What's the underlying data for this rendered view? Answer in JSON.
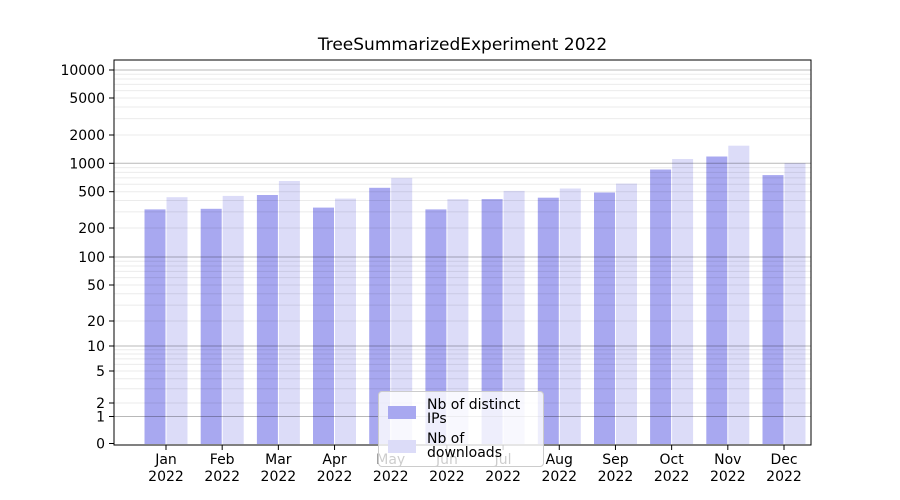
{
  "chart_data": {
    "type": "bar",
    "title": "TreeSummarizedExperiment 2022",
    "categories": [
      "Jan",
      "Feb",
      "Mar",
      "Apr",
      "May",
      "Jun",
      "Jul",
      "Aug",
      "Sep",
      "Oct",
      "Nov",
      "Dec"
    ],
    "x_year_label": "2022",
    "series": [
      {
        "name": "Nb of distinct IPs",
        "color": "#a8a8f0",
        "values": [
          320,
          325,
          460,
          335,
          550,
          320,
          415,
          430,
          490,
          860,
          1180,
          750
        ]
      },
      {
        "name": "Nb of downloads",
        "color": "#dcdcf8",
        "values": [
          435,
          450,
          650,
          420,
          700,
          415,
          510,
          540,
          610,
          1110,
          1540,
          1005
        ]
      }
    ],
    "y_axis": {
      "scale": "symlog",
      "tick_labels": [
        0,
        1,
        2,
        5,
        10,
        20,
        50,
        100,
        200,
        500,
        1000,
        2000,
        5000,
        10000
      ],
      "range": [
        0,
        12800
      ]
    },
    "grid": "on",
    "legend_position": "lower center"
  },
  "legend": {
    "items": [
      {
        "label": "Nb of distinct IPs"
      },
      {
        "label": "Nb of downloads"
      }
    ]
  }
}
